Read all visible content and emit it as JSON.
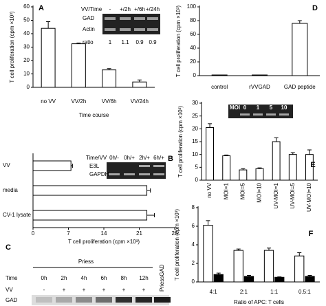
{
  "chart_data": [
    {
      "type": "bar",
      "panel": "A",
      "ylabel": "T cell proliferation (cpm ×10³)",
      "xlabel": "Time course",
      "categories": [
        "no VV",
        "VV/2h",
        "VV/6h",
        "VV/24h"
      ],
      "values": [
        44,
        32.5,
        13,
        4
      ],
      "errors": [
        5,
        0.5,
        1,
        1.5
      ],
      "color": "#ffffff",
      "ylim": [
        0,
        60
      ],
      "yticks": [
        0,
        10,
        20,
        30,
        40,
        50,
        60
      ],
      "inset": {
        "header": [
          "VV/Time",
          "-",
          "+/2h",
          "+/6h",
          "+/24h"
        ],
        "rows": [
          "GAD",
          "Actin"
        ],
        "ratio_label": "ratio",
        "ratio": [
          1,
          1.1,
          0.9,
          0.9
        ]
      }
    },
    {
      "type": "hbar",
      "panel": "B",
      "xlabel": "T cell proliferation (cpm ×10³)",
      "categories": [
        "VV",
        "media",
        "CV-1 lysate"
      ],
      "values": [
        7.5,
        22.5,
        22.5
      ],
      "errors": [
        0.3,
        0.7,
        1.5
      ],
      "color": "#ffffff",
      "xlim": [
        0,
        28
      ],
      "xticks": [
        0,
        7,
        14,
        21,
        28
      ],
      "inset": {
        "header": [
          "Time/VV",
          "0h/-",
          "0h/+",
          "2h/+",
          "6h/+"
        ],
        "rows": [
          "E3L",
          "GAPDH"
        ]
      }
    },
    {
      "type": "gel",
      "panel": "C",
      "title": "Priess",
      "rows": [
        {
          "label": "Time",
          "cells": [
            "0h",
            "2h",
            "4h",
            "6h",
            "8h",
            "12h"
          ]
        },
        {
          "label": "VV",
          "cells": [
            "-",
            "+",
            "+",
            "+",
            "+",
            "+"
          ]
        }
      ],
      "control": "PriessGAD",
      "band_label": "GAD"
    },
    {
      "type": "bar",
      "panel": "D",
      "ylabel": "T cell proliferation (cpm ×10³)",
      "categories": [
        "control",
        "rVVGAD",
        "GAD peptide"
      ],
      "values": [
        1,
        1,
        76
      ],
      "errors": [
        0,
        0,
        4
      ],
      "color": "#ffffff",
      "ylim": [
        0,
        100
      ],
      "yticks": [
        0,
        20,
        40,
        60,
        80,
        100
      ]
    },
    {
      "type": "bar",
      "panel": "E",
      "ylabel": "T cell proliferation (cpm ×10³)",
      "categories": [
        "no VV",
        "MOI=1",
        "MOI=5",
        "MOI=10",
        "UV-MOI=1",
        "UV-MOI=5",
        "UV-MOI=10"
      ],
      "values": [
        20.5,
        9.5,
        4,
        4.5,
        15,
        10,
        10
      ],
      "errors": [
        1.5,
        0.3,
        0.5,
        0.3,
        1.5,
        0.7,
        1.8
      ],
      "color": "#ffffff",
      "ylim": [
        0,
        30
      ],
      "yticks": [
        0,
        5,
        10,
        15,
        20,
        25,
        30
      ],
      "rotate_labels": true,
      "inset": {
        "label": "MOI",
        "lanes": [
          "0",
          "1",
          "5",
          "10"
        ]
      }
    },
    {
      "type": "bar",
      "panel": "F",
      "ylabel": "T cell proliferation (cpm ×10³)",
      "xlabel": "Ratio of APC: T cells",
      "categories": [
        "4:1",
        "2:1",
        "1:1",
        "0.5:1"
      ],
      "ylim": [
        0,
        8
      ],
      "yticks": [
        0,
        2,
        4,
        6,
        8
      ],
      "series": [
        {
          "color": "#ffffff",
          "values": [
            6.1,
            3.4,
            3.4,
            2.8
          ],
          "errors": [
            0.5,
            0.15,
            0.25,
            0.35
          ]
        },
        {
          "color": "#000000",
          "values": [
            0.8,
            0.6,
            0.5,
            0.6
          ],
          "errors": [
            0.15,
            0.1,
            0.05,
            0.1
          ]
        }
      ]
    }
  ]
}
